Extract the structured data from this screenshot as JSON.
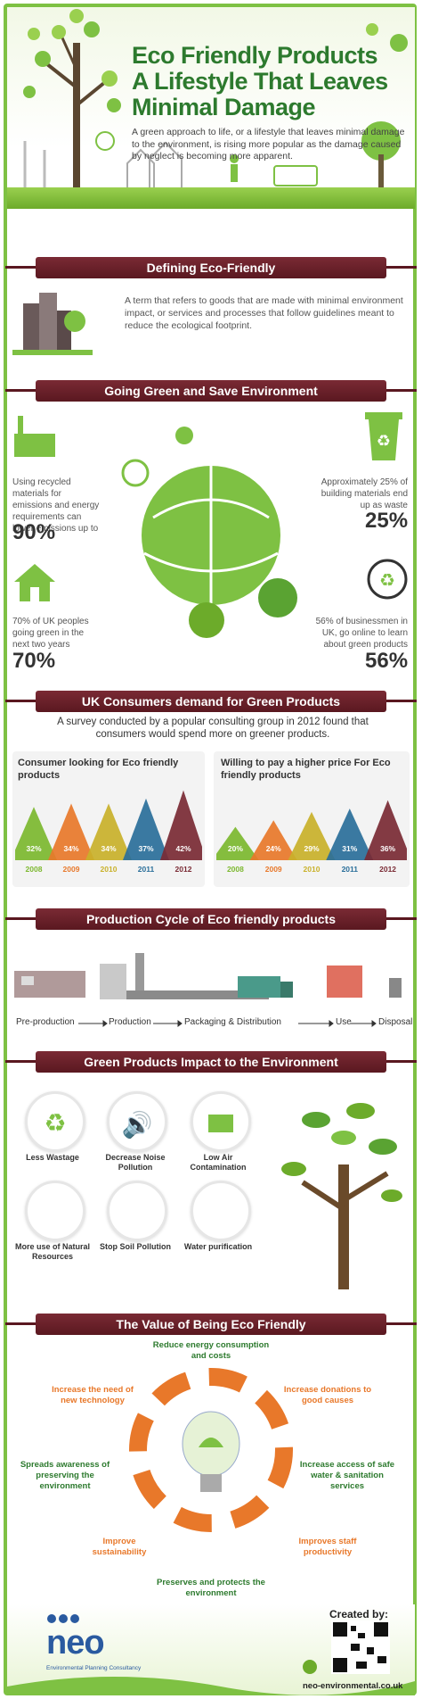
{
  "header": {
    "title_line1": "Eco Friendly Products",
    "title_line2": "A Lifestyle That Leaves",
    "title_line3": "Minimal Damage",
    "intro": "A green approach to life, or a lifestyle that leaves minimal damage to the environment, is rising more popular as the damage caused by neglect is becoming more apparent."
  },
  "defining": {
    "title": "Defining Eco-Friendly",
    "text": "A term that refers to goods that are made with minimal environment impact, or services and processes that follow guidelines meant to reduce the ecological footprint."
  },
  "going_green": {
    "title": "Going Green and Save Environment",
    "stats": [
      {
        "text": "Using recycled materials for emissions and energy requirements can lower emissions up to",
        "value": "90%"
      },
      {
        "text": "Approximately 25% of building materials end up as waste",
        "value": "25%"
      },
      {
        "text": "70% of UK peoples going green in the next two years",
        "value": "70%"
      },
      {
        "text": "56% of businessmen in UK, go online to learn about green products",
        "value": "56%"
      }
    ]
  },
  "consumers": {
    "title": "UK Consumers demand for Green Products",
    "note": "A survey conducted by a popular consulting group in 2012 found that consumers would spend more on greener products."
  },
  "chart_data": [
    {
      "type": "bar",
      "title": "Consumer looking for Eco friendly products",
      "categories": [
        "2008",
        "2009",
        "2010",
        "2011",
        "2012"
      ],
      "values": [
        32,
        34,
        34,
        37,
        42
      ],
      "value_labels": [
        "32%",
        "34%",
        "34%",
        "37%",
        "42%"
      ],
      "colors": [
        "#7cb82f",
        "#e8782a",
        "#c9b12a",
        "#2a6f9a",
        "#7a2a34"
      ]
    },
    {
      "type": "bar",
      "title": "Willing to pay a higher price For Eco friendly products",
      "categories": [
        "2008",
        "2009",
        "2010",
        "2011",
        "2012"
      ],
      "values": [
        20,
        24,
        29,
        31,
        36
      ],
      "value_labels": [
        "20%",
        "24%",
        "29%",
        "31%",
        "36%"
      ],
      "colors": [
        "#7cb82f",
        "#e8782a",
        "#c9b12a",
        "#2a6f9a",
        "#7a2a34"
      ]
    }
  ],
  "production": {
    "title": "Production Cycle of Eco friendly products",
    "steps": [
      "Pre-production",
      "Production",
      "Packaging & Distribution",
      "Use",
      "Disposal"
    ]
  },
  "impact": {
    "title": "Green Products Impact to the Environment",
    "items": [
      "Less Wastage",
      "Decrease Noise Pollution",
      "Low Air Contamination",
      "More use of Natural Resources",
      "Stop Soil Pollution",
      "Water purification"
    ]
  },
  "value": {
    "title": "The Value of Being Eco Friendly",
    "items": [
      "Reduce energy consumption and costs",
      "Increase donations to good causes",
      "Increase access of safe water & sanitation services",
      "Improves staff productivity",
      "Preserves and protects the environment",
      "Improve sustainability",
      "Spreads awareness of preserving the environment",
      "Increase the need of new technology"
    ]
  },
  "footer": {
    "logo": "neo",
    "logo_sub": "Environmental Planning Consultancy",
    "created_by": "Created by:",
    "site": "neo-environmental.co.uk"
  },
  "colors": {
    "green": "#7ec143",
    "dark_green": "#2d7a2e",
    "ribbon": "#6a2029",
    "orange": "#e8782a"
  }
}
